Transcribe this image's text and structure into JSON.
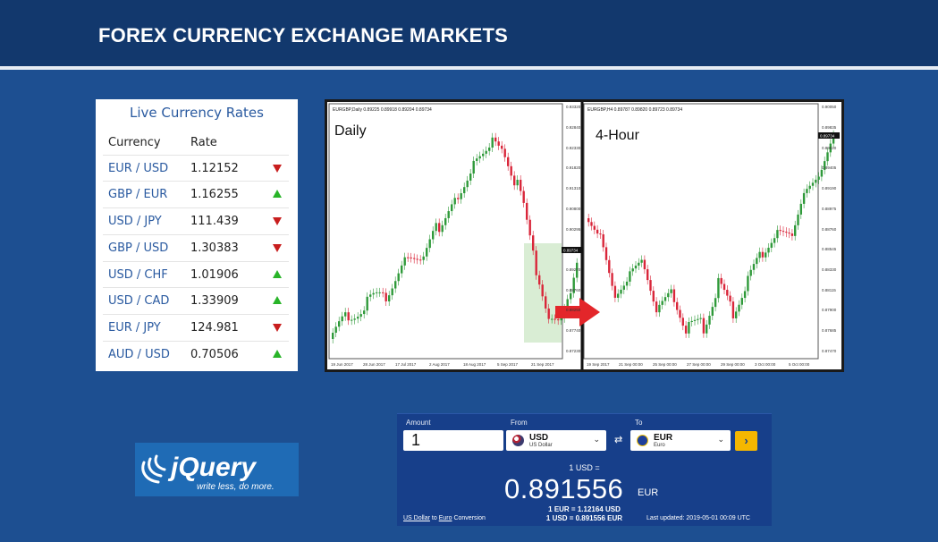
{
  "header": {
    "title": "FOREX CURRENCY EXCHANGE MARKETS"
  },
  "rates": {
    "title": "Live Currency Rates",
    "col_currency": "Currency",
    "col_rate": "Rate",
    "rows": [
      {
        "pair": "EUR / USD",
        "rate": "1.12152",
        "trend": "down"
      },
      {
        "pair": "GBP / EUR",
        "rate": "1.16255",
        "trend": "up"
      },
      {
        "pair": "USD / JPY",
        "rate": "111.439",
        "trend": "down"
      },
      {
        "pair": "GBP / USD",
        "rate": "1.30383",
        "trend": "down"
      },
      {
        "pair": "USD / CHF",
        "rate": "1.01906",
        "trend": "up"
      },
      {
        "pair": "USD / CAD",
        "rate": "1.33909",
        "trend": "up"
      },
      {
        "pair": "EUR / JPY",
        "rate": "124.981",
        "trend": "down"
      },
      {
        "pair": "AUD / USD",
        "rate": "0.70506",
        "trend": "up"
      }
    ],
    "colors": {
      "down": "#c81e1e",
      "up": "#28b428",
      "link": "#2a5aa0"
    }
  },
  "chart": {
    "left_label": "Daily",
    "right_label": "4-Hour",
    "left_header": "EURGBP,Daily  0.89225 0.89918 0.89204 0.89734",
    "right_header": "EURGBP,H4  0.89787 0.89820 0.89723 0.89734",
    "left_x_ticks": [
      "19 Jun 2017",
      "28 Jun 2017",
      "17 Jul 2017",
      "2 Aug 2017",
      "18 Aug 2017",
      "5 Sep 2017",
      "21 Sep 2017"
    ],
    "right_x_ticks": [
      "19 Sep 2017",
      "21 Sep 00:00",
      "25 Sep 00:00",
      "27 Sep 00:00",
      "29 Sep 00:00",
      "3 Oct 00:00",
      "5 Oct 00:00"
    ],
    "left_y_ticks": [
      "0.93320",
      "0.92840",
      "0.92330",
      "0.91820",
      "0.91310",
      "0.90800",
      "0.90295",
      "0.89785",
      "0.89270",
      "0.88760",
      "0.88250",
      "0.87740",
      "0.87230"
    ],
    "right_y_ticks": [
      "0.90050",
      "0.89835",
      "0.89620",
      "0.89405",
      "0.89190",
      "0.88975",
      "0.88760",
      "0.88545",
      "0.88330",
      "0.88115",
      "0.87900",
      "0.87685",
      "0.87470"
    ],
    "left_last_price": "0.89734",
    "right_last_price": "0.89734"
  },
  "logo": {
    "brand": "jQuery",
    "tagline": "write less, do more."
  },
  "converter": {
    "amount_label": "Amount",
    "from_label": "From",
    "to_label": "To",
    "amount_value": "1",
    "from_code": "USD",
    "from_name": "US Dollar",
    "to_code": "EUR",
    "to_name": "Euro",
    "swap_icon": "⇄",
    "go_icon": "›",
    "base_line": "1 USD =",
    "result": "0.891556",
    "result_currency": "EUR",
    "inverse_line": "1 EUR = 1.12164 USD",
    "direct_line": "1 USD = 0.891556 EUR",
    "footer_from": "US Dollar",
    "footer_to_word": "to",
    "footer_to": "Euro",
    "footer_suffix": "Conversion",
    "last_updated": "Last updated: 2019-05-01 00:09 UTC"
  }
}
